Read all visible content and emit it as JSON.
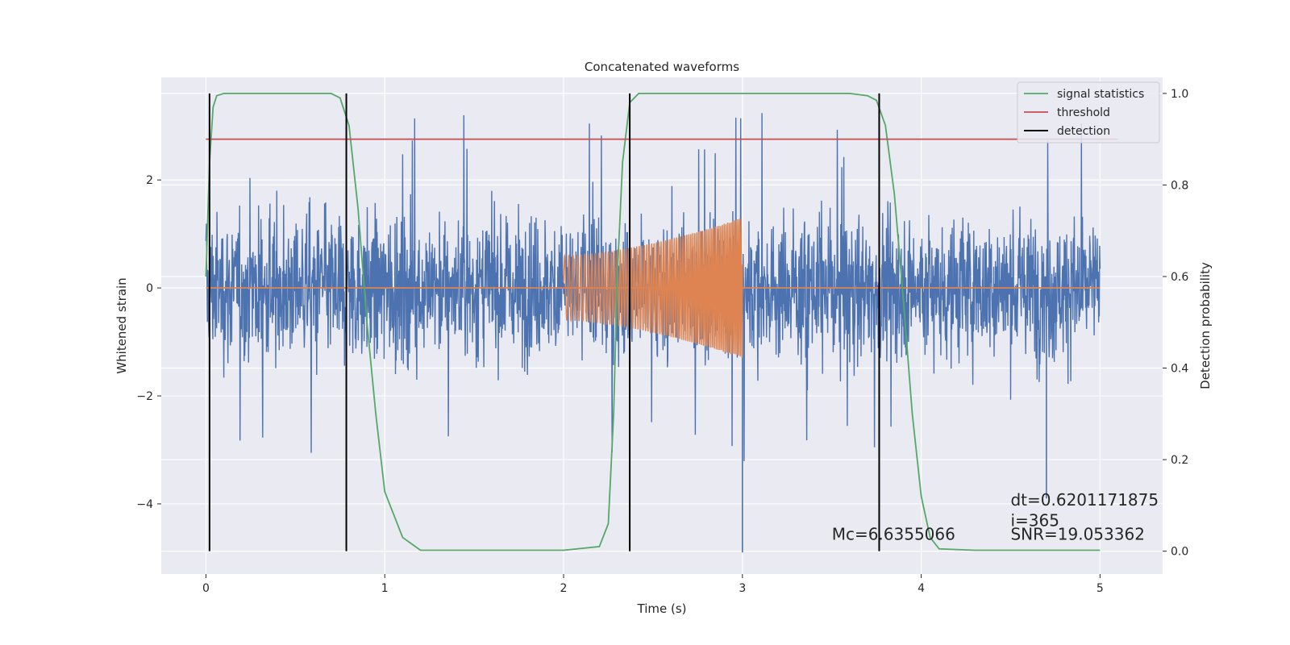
{
  "chart_data": {
    "type": "line",
    "title": "Concatenated waveforms",
    "xlabel": "Time (s)",
    "ylabel_left": "Whitened strain",
    "ylabel_right": "Detection probability",
    "xlim": [
      -0.25,
      5.35
    ],
    "ylim_left": [
      -5.3,
      3.9
    ],
    "ylim_right": [
      -0.05,
      1.035
    ],
    "x_ticks": [
      0,
      1,
      2,
      3,
      4,
      5
    ],
    "x_tick_labels": [
      "0",
      "1",
      "2",
      "3",
      "4",
      "5"
    ],
    "y_left_ticks": [
      -4,
      -2,
      0,
      2
    ],
    "y_left_tick_labels": [
      "−4",
      "−2",
      "0",
      "2"
    ],
    "y_right_ticks": [
      0.0,
      0.2,
      0.4,
      0.6,
      0.8,
      1.0
    ],
    "y_right_tick_labels": [
      "0.0",
      "0.2",
      "0.4",
      "0.6",
      "0.8",
      "1.0"
    ],
    "grid": true,
    "legend_position": "top-right",
    "legend": [
      {
        "label": "signal statistics",
        "color": "#55a868"
      },
      {
        "label": "threshold",
        "color": "#c44e52"
      },
      {
        "label": "detection",
        "color": "#000000"
      }
    ],
    "series": [
      {
        "kind": "noise",
        "axis": "left",
        "color": "#4c72b0",
        "x_range": [
          0,
          5
        ],
        "typical_amplitude": 2.2,
        "min": -4.9,
        "max": 3.5
      },
      {
        "kind": "chirp",
        "axis": "left",
        "color": "#dd8452",
        "x_range": [
          2,
          3
        ],
        "amplitude_start": 0.6,
        "amplitude_end": 1.3,
        "baseline": 0
      },
      {
        "name": "signal statistics",
        "axis": "right",
        "color": "#55a868",
        "x": [
          0.0,
          0.02,
          0.04,
          0.06,
          0.1,
          0.2,
          0.5,
          0.7,
          0.75,
          0.8,
          0.85,
          0.9,
          0.95,
          1.0,
          1.05,
          1.1,
          1.2,
          1.5,
          2.0,
          2.2,
          2.25,
          2.28,
          2.3,
          2.33,
          2.37,
          2.42,
          2.5,
          3.0,
          3.6,
          3.7,
          3.75,
          3.8,
          3.85,
          3.9,
          3.95,
          4.0,
          4.05,
          4.1,
          4.3,
          5.0
        ],
        "y": [
          0.6,
          0.85,
          0.97,
          0.995,
          1.0,
          1.0,
          1.0,
          1.0,
          0.99,
          0.93,
          0.75,
          0.5,
          0.3,
          0.13,
          0.08,
          0.03,
          0.002,
          0.002,
          0.002,
          0.01,
          0.06,
          0.3,
          0.6,
          0.85,
          0.98,
          1.0,
          1.0,
          1.0,
          1.0,
          0.995,
          0.985,
          0.93,
          0.78,
          0.55,
          0.3,
          0.12,
          0.03,
          0.005,
          0.002,
          0.002
        ]
      },
      {
        "name": "threshold",
        "axis": "right",
        "color": "#c44e52",
        "x": [
          0,
          5.1
        ],
        "y": [
          0.9,
          0.9
        ]
      }
    ],
    "detections": {
      "color": "#000000",
      "x": [
        0.02,
        0.785,
        2.37,
        3.765
      ],
      "y_range": [
        0.0,
        1.0
      ]
    },
    "annotations": [
      {
        "text": "dt=0.6201171875",
        "x": 4.5,
        "y_right": 0.1
      },
      {
        "text": " i=365",
        "x": 4.5,
        "y_right": 0.055
      },
      {
        "text": "SNR=19.053362",
        "x": 4.5,
        "y_right": 0.025
      },
      {
        "text": "Mc=6.6355066",
        "x": 3.5,
        "y_right": 0.025
      }
    ]
  }
}
